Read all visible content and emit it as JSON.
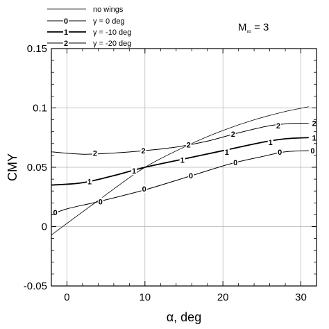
{
  "chart_data": {
    "type": "line",
    "title": "",
    "xlabel": "α, deg",
    "ylabel": "CMY",
    "xlim": [
      -2,
      32
    ],
    "ylim": [
      -0.05,
      0.15
    ],
    "xticks": [
      0,
      10,
      20,
      30
    ],
    "yticks": [
      -0.05,
      0,
      0.05,
      0.1,
      0.15
    ],
    "xtick_labels": [
      "0",
      "10",
      "20",
      "30"
    ],
    "ytick_labels": [
      "-0.05",
      "0",
      "0.05",
      "0.1",
      "0.15"
    ],
    "grid": true,
    "legend_position": "top-left",
    "annotation": {
      "prefix": "M",
      "subscript": "∞",
      "suffix": " = 3"
    },
    "series": [
      {
        "name": "no wings",
        "marker": "",
        "color": "#000000",
        "x": [
          -2,
          4,
          10,
          16,
          20,
          24,
          28,
          31
        ],
        "y": [
          -0.007,
          0.022,
          0.05,
          0.07,
          0.081,
          0.09,
          0.097,
          0.101
        ]
      },
      {
        "name": "γ = 0 deg",
        "marker": "0",
        "color": "#000000",
        "x": [
          -2,
          0,
          4,
          10,
          16,
          21,
          25,
          28,
          31
        ],
        "y": [
          0.01,
          0.015,
          0.021,
          0.031,
          0.043,
          0.053,
          0.059,
          0.063,
          0.064
        ],
        "marker_x": [
          -1.5,
          4.3,
          9.9,
          15.9,
          21.6,
          27.3,
          31.5
        ],
        "marker_y": [
          0.012,
          0.021,
          0.032,
          0.043,
          0.054,
          0.063,
          0.064
        ]
      },
      {
        "name": "γ = -10 deg",
        "marker": "1",
        "color": "#000000",
        "x": [
          -2,
          2,
          6,
          10,
          15,
          20,
          25,
          28,
          31
        ],
        "y": [
          0.035,
          0.037,
          0.043,
          0.05,
          0.057,
          0.064,
          0.071,
          0.074,
          0.075
        ],
        "marker_x": [
          2.9,
          8.6,
          14.8,
          20.5,
          26.1,
          31.7
        ],
        "marker_y": [
          0.038,
          0.047,
          0.056,
          0.063,
          0.071,
          0.075
        ]
      },
      {
        "name": "γ = -20 deg",
        "marker": "2",
        "color": "#000000",
        "x": [
          -2,
          2,
          6,
          10,
          14,
          18,
          22,
          26,
          29,
          31
        ],
        "y": [
          0.063,
          0.061,
          0.062,
          0.064,
          0.067,
          0.072,
          0.079,
          0.085,
          0.087,
          0.087
        ],
        "marker_x": [
          3.6,
          9.8,
          15.6,
          21.3,
          27.1,
          31.7
        ],
        "marker_y": [
          0.062,
          0.064,
          0.069,
          0.078,
          0.085,
          0.087
        ]
      }
    ]
  }
}
